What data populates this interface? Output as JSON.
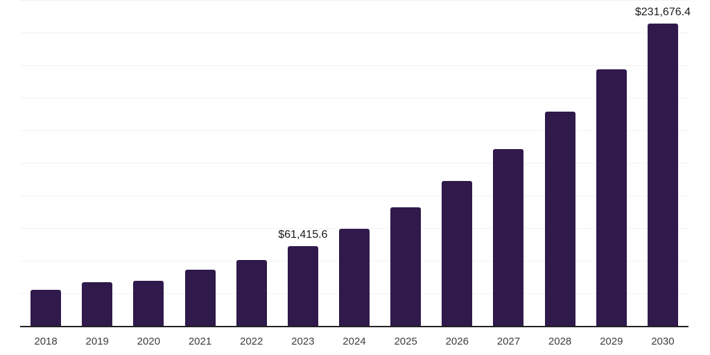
{
  "chart_data": {
    "type": "bar",
    "title": "",
    "xlabel": "",
    "ylabel": "",
    "categories": [
      "2018",
      "2019",
      "2020",
      "2021",
      "2022",
      "2023",
      "2024",
      "2025",
      "2026",
      "2027",
      "2028",
      "2029",
      "2030"
    ],
    "values": [
      27900,
      33400,
      34500,
      43000,
      50400,
      61415.6,
      74700,
      91000,
      111400,
      135900,
      164600,
      196900,
      231676.4
    ],
    "data_labels": [
      "",
      "",
      "",
      "",
      "",
      "$61,415.6",
      "",
      "",
      "",
      "",
      "",
      "",
      "$231,676.4"
    ],
    "ylim": [
      0,
      250000
    ],
    "gridline_interval": 25000,
    "grid": true,
    "legend": "none",
    "y_axis_labels_visible": false,
    "colors": {
      "bar": "#2f1a4b",
      "gridline": "#f2f2f2",
      "axis_line": "#212121",
      "data_label_text": "#1a1a1a",
      "tick_label_text": "#3d3d3d",
      "background": "#ffffff"
    }
  }
}
